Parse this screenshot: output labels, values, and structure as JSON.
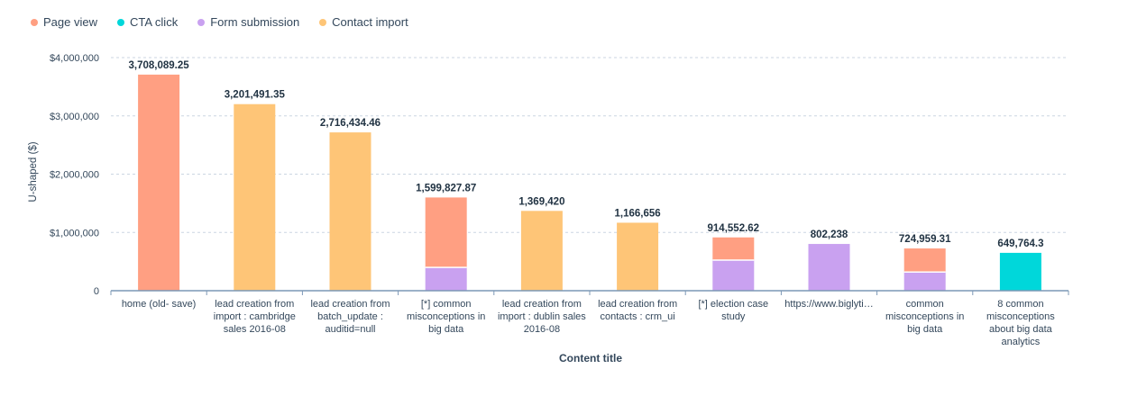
{
  "chart_data": {
    "type": "bar",
    "stacked": true,
    "xlabel": "Content title",
    "ylabel": "U-shaped ($)",
    "ylim": [
      0,
      4000000
    ],
    "yticks": [
      {
        "value": 0,
        "label": "0"
      },
      {
        "value": 1000000,
        "label": "$1,000,000"
      },
      {
        "value": 2000000,
        "label": "$2,000,000"
      },
      {
        "value": 3000000,
        "label": "$3,000,000"
      },
      {
        "value": 4000000,
        "label": "$4,000,000"
      }
    ],
    "grid": true,
    "legend_position": "top-left",
    "categories": [
      "home (old- save)",
      "lead creation from import : cambridge sales 2016-08",
      "lead creation from batch_update : auditid=null",
      "[*] common misconceptions in big data",
      "lead creation from import : dublin sales 2016-08",
      "lead creation from contacts : crm_ui",
      "[*] election case study",
      "https://www.biglyti…",
      "common misconceptions in big data",
      "8 common misconceptions about big data analytics"
    ],
    "totals_labels": [
      "3,708,089.25",
      "3,201,491.35",
      "2,716,434.46",
      "1,599,827.87",
      "1,369,420",
      "1,166,656",
      "914,552.62",
      "802,238",
      "724,959.31",
      "649,764.3"
    ],
    "series": [
      {
        "name": "Form submission",
        "color": "#c9a1f0",
        "values": [
          0,
          0,
          0,
          400000,
          0,
          0,
          525000,
          802238,
          320000,
          0
        ]
      },
      {
        "name": "Page view",
        "color": "#ff9f82",
        "values": [
          3708089.25,
          0,
          0,
          1199827.87,
          0,
          0,
          389552.62,
          0,
          404959.31,
          0
        ]
      },
      {
        "name": "CTA click",
        "color": "#00d7da",
        "values": [
          0,
          0,
          0,
          0,
          0,
          0,
          0,
          0,
          0,
          649764.3
        ]
      },
      {
        "name": "Contact import",
        "color": "#fec577",
        "values": [
          0,
          3201491.35,
          2716434.46,
          0,
          1369420,
          1166656,
          0,
          0,
          0,
          0
        ]
      }
    ],
    "legend_order": [
      "Page view",
      "CTA click",
      "Form submission",
      "Contact import"
    ]
  }
}
